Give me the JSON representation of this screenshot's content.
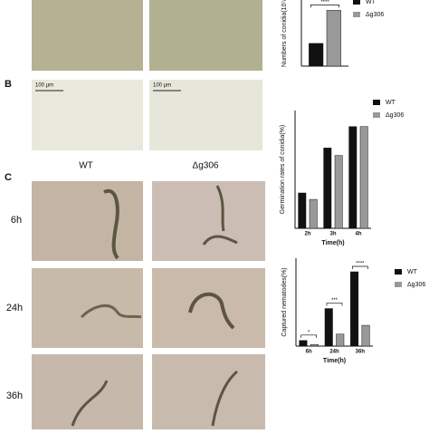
{
  "panels": {
    "b": "B",
    "c": "C"
  },
  "scale_bars": [
    "100 µm",
    "100 µm"
  ],
  "columns": [
    "WT",
    "Δg306"
  ],
  "rows": [
    "6h",
    "24h",
    "36h"
  ],
  "chart_data": [
    {
      "type": "bar",
      "ylabel": "Numbers of conidia(10⁷/",
      "categories": [
        null
      ],
      "series": [
        {
          "name": "WT",
          "color": "#111111",
          "values": [
            5.5
          ]
        },
        {
          "name": "Δg306",
          "color": "#999999",
          "values": [
            13.5
          ]
        }
      ],
      "annotations": [
        "****"
      ],
      "ylim": [
        0,
        16
      ]
    },
    {
      "type": "bar",
      "ylabel": "Germination rates of conidia(%)",
      "xlabel": "Time(h)",
      "categories": [
        "2h",
        "3h",
        "4h"
      ],
      "series": [
        {
          "name": "WT",
          "color": "#111111",
          "values": [
            33,
            75,
            95
          ]
        },
        {
          "name": "Δg306",
          "color": "#999999",
          "values": [
            27,
            68,
            95
          ]
        }
      ],
      "ylim": [
        0,
        110
      ]
    },
    {
      "type": "bar",
      "ylabel": "Captured nematodes(%)",
      "xlabel": "Time(h)",
      "categories": [
        "6h",
        "24h",
        "36h"
      ],
      "series": [
        {
          "name": "WT",
          "color": "#111111",
          "values": [
            7,
            47,
            93
          ]
        },
        {
          "name": "Δg306",
          "color": "#999999",
          "values": [
            2,
            15,
            26
          ]
        }
      ],
      "annotations": [
        "*",
        "***",
        "****"
      ],
      "ylim": [
        0,
        110
      ]
    }
  ]
}
